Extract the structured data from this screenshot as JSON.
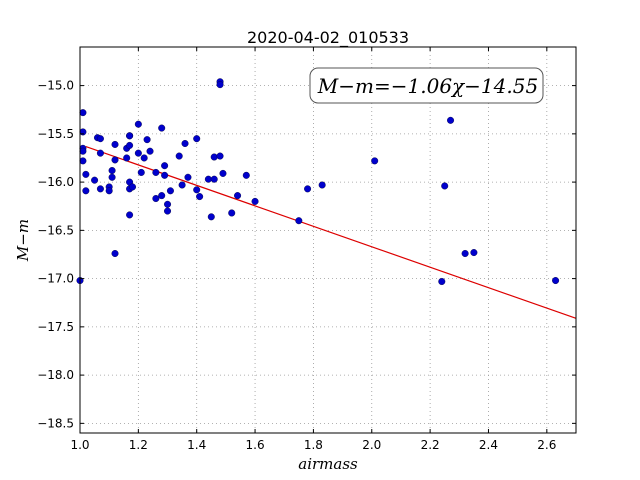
{
  "chart_data": {
    "type": "scatter",
    "title": "2020-04-02_010533",
    "xlabel": "airmass",
    "ylabel": "M−m",
    "xlim": [
      1.0,
      2.7
    ],
    "ylim": [
      -18.6,
      -14.6
    ],
    "x_ticks": [
      1.0,
      1.2,
      1.4,
      1.6,
      1.8,
      2.0,
      2.2,
      2.4,
      2.6
    ],
    "y_ticks": [
      -15.0,
      -15.5,
      -16.0,
      -16.5,
      -17.0,
      -17.5,
      -18.0,
      -18.5
    ],
    "x_tick_labels": [
      "1.0",
      "1.2",
      "1.4",
      "1.6",
      "1.8",
      "2.0",
      "2.2",
      "2.4",
      "2.6"
    ],
    "y_tick_labels": [
      "−15.0",
      "−15.5",
      "−16.0",
      "−16.5",
      "−17.0",
      "−17.5",
      "−18.0",
      "−18.5"
    ],
    "grid": true,
    "annotation": "M−m=−1.06χ−14.55",
    "fit": {
      "slope": -1.06,
      "intercept": -14.55,
      "color": "#dd0000"
    },
    "point_color": "#0000cc",
    "series": [
      {
        "points": [
          [
            1.0,
            -17.02
          ],
          [
            1.01,
            -15.28
          ],
          [
            1.01,
            -15.48
          ],
          [
            1.01,
            -15.65
          ],
          [
            1.01,
            -15.68
          ],
          [
            1.01,
            -15.78
          ],
          [
            1.02,
            -15.92
          ],
          [
            1.02,
            -16.09
          ],
          [
            1.05,
            -15.98
          ],
          [
            1.06,
            -15.54
          ],
          [
            1.07,
            -15.55
          ],
          [
            1.07,
            -15.7
          ],
          [
            1.07,
            -16.07
          ],
          [
            1.1,
            -16.05
          ],
          [
            1.1,
            -16.09
          ],
          [
            1.11,
            -15.88
          ],
          [
            1.11,
            -15.95
          ],
          [
            1.12,
            -15.61
          ],
          [
            1.12,
            -15.77
          ],
          [
            1.12,
            -16.74
          ],
          [
            1.16,
            -15.65
          ],
          [
            1.16,
            -15.75
          ],
          [
            1.17,
            -15.52
          ],
          [
            1.17,
            -15.52
          ],
          [
            1.17,
            -15.62
          ],
          [
            1.17,
            -16.0
          ],
          [
            1.17,
            -16.07
          ],
          [
            1.17,
            -16.34
          ],
          [
            1.18,
            -16.05
          ],
          [
            1.2,
            -15.4
          ],
          [
            1.2,
            -15.7
          ],
          [
            1.21,
            -15.9
          ],
          [
            1.22,
            -15.75
          ],
          [
            1.23,
            -15.56
          ],
          [
            1.24,
            -15.68
          ],
          [
            1.26,
            -15.9
          ],
          [
            1.26,
            -16.17
          ],
          [
            1.28,
            -15.44
          ],
          [
            1.28,
            -16.14
          ],
          [
            1.29,
            -15.83
          ],
          [
            1.29,
            -15.93
          ],
          [
            1.3,
            -16.23
          ],
          [
            1.3,
            -16.3
          ],
          [
            1.31,
            -16.09
          ],
          [
            1.34,
            -15.73
          ],
          [
            1.35,
            -16.03
          ],
          [
            1.36,
            -15.6
          ],
          [
            1.37,
            -15.95
          ],
          [
            1.4,
            -15.55
          ],
          [
            1.4,
            -16.08
          ],
          [
            1.41,
            -16.15
          ],
          [
            1.44,
            -15.97
          ],
          [
            1.45,
            -16.36
          ],
          [
            1.46,
            -15.74
          ],
          [
            1.46,
            -15.97
          ],
          [
            1.48,
            -14.96
          ],
          [
            1.48,
            -14.99
          ],
          [
            1.48,
            -15.73
          ],
          [
            1.49,
            -15.91
          ],
          [
            1.52,
            -16.32
          ],
          [
            1.54,
            -16.14
          ],
          [
            1.57,
            -15.93
          ],
          [
            1.6,
            -16.2
          ],
          [
            1.75,
            -16.4
          ],
          [
            1.78,
            -16.07
          ],
          [
            1.83,
            -16.03
          ],
          [
            2.01,
            -15.78
          ],
          [
            2.24,
            -17.03
          ],
          [
            2.25,
            -16.04
          ],
          [
            2.27,
            -15.36
          ],
          [
            2.32,
            -16.74
          ],
          [
            2.35,
            -16.73
          ],
          [
            2.63,
            -17.02
          ]
        ]
      }
    ]
  }
}
